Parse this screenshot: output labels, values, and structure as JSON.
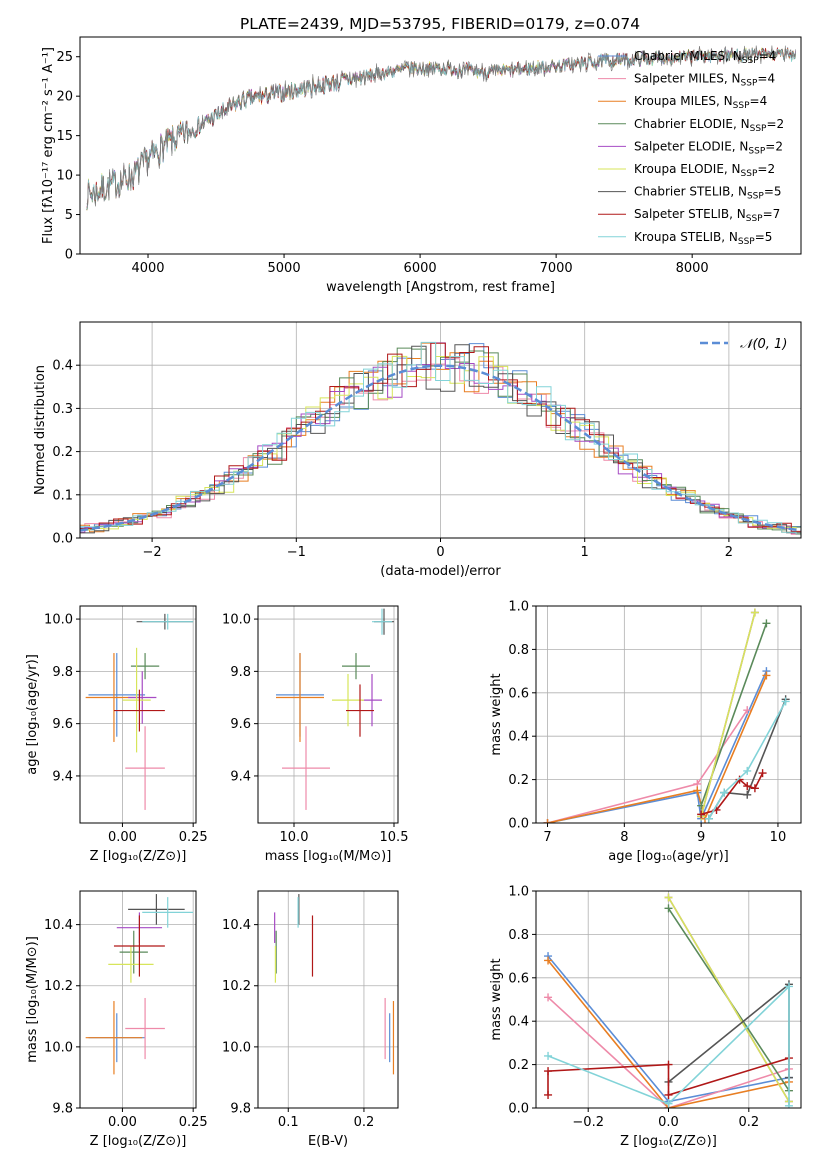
{
  "figure_title": "PLATE=2439, MJD=53795, FIBERID=0179, z=0.074",
  "colors": {
    "series": [
      "#5b8dd6",
      "#ee8aa9",
      "#e87e22",
      "#5a8a5a",
      "#a64bc4",
      "#d7e55a",
      "#555555",
      "#b01818",
      "#82d3d8"
    ],
    "normal_fit": "#5b8dd6",
    "grid": "#b0b0b0"
  },
  "chart_data": [
    {
      "type": "line",
      "id": "spectrum",
      "title": "PLATE=2439, MJD=53795, FIBERID=0179, z=0.074",
      "xlabel": "wavelength [Angstrom, rest frame]",
      "ylabel": "Flux [fλ10⁻¹⁷ erg cm⁻² s⁻¹ A⁻¹]",
      "xlim": [
        3500,
        8800
      ],
      "ylim": [
        0,
        27.5
      ],
      "xticks": [
        4000,
        5000,
        6000,
        7000,
        8000
      ],
      "yticks": [
        0,
        5,
        10,
        15,
        20,
        25
      ],
      "grid": false,
      "legend_position": "upper-right",
      "continuum_x": [
        3550,
        3700,
        3900,
        4000,
        4100,
        4300,
        4500,
        4700,
        5000,
        5300,
        5600,
        5900,
        6200,
        6500,
        6800,
        7100,
        7400,
        7700,
        8000,
        8300,
        8760
      ],
      "continuum_y": [
        7.5,
        8.5,
        10.0,
        12.0,
        13.5,
        15.5,
        17.5,
        19.5,
        20.5,
        21.5,
        22.5,
        23.5,
        23.5,
        23.0,
        23.5,
        24.0,
        24.5,
        24.8,
        25.0,
        25.2,
        25.3
      ],
      "series": [
        {
          "name": "Chabrier MILES, N",
          "sub": "SSP",
          "suffix": "=4"
        },
        {
          "name": "Salpeter MILES, N",
          "sub": "SSP",
          "suffix": "=4"
        },
        {
          "name": "Kroupa MILES, N",
          "sub": "SSP",
          "suffix": "=4"
        },
        {
          "name": "Chabrier ELODIE, N",
          "sub": "SSP",
          "suffix": "=2"
        },
        {
          "name": "Salpeter ELODIE, N",
          "sub": "SSP",
          "suffix": "=2"
        },
        {
          "name": "Kroupa ELODIE, N",
          "sub": "SSP",
          "suffix": "=2"
        },
        {
          "name": "Chabrier STELIB, N",
          "sub": "SSP",
          "suffix": "=5"
        },
        {
          "name": "Salpeter STELIB, N",
          "sub": "SSP",
          "suffix": "=7"
        },
        {
          "name": "Kroupa STELIB, N",
          "sub": "SSP",
          "suffix": "=5"
        }
      ]
    },
    {
      "type": "step",
      "id": "residuals",
      "xlabel": "(data-model)/error",
      "ylabel": "Normed distribution",
      "xlim": [
        -2.5,
        2.5
      ],
      "ylim": [
        0,
        0.5
      ],
      "xticks": [
        -2,
        -1,
        0,
        1,
        2
      ],
      "yticks": [
        0.0,
        0.1,
        0.2,
        0.3,
        0.4
      ],
      "grid": true,
      "legend": "𝒩(0, 1)",
      "normal_mean": 0,
      "normal_sigma": 1
    },
    {
      "type": "errorbar",
      "id": "age_vs_Z",
      "xlabel": "Z [log₁₀(Z/Z⊙)]",
      "ylabel": "age  [log₁₀(age/yr)]",
      "xlim": [
        -0.15,
        0.26
      ],
      "ylim": [
        9.22,
        10.05
      ],
      "xticks": [
        0.0,
        0.25
      ],
      "yticks": [
        9.4,
        9.6,
        9.8,
        10.0
      ],
      "grid": true,
      "points": [
        {
          "x": -0.02,
          "xerr": 0.1,
          "y": 9.71,
          "yerr": 0.16
        },
        {
          "x": 0.08,
          "xerr": 0.07,
          "y": 9.43,
          "yerr": 0.16
        },
        {
          "x": -0.03,
          "xerr": 0.1,
          "y": 9.7,
          "yerr": 0.17
        },
        {
          "x": 0.08,
          "xerr": 0.05,
          "y": 9.82,
          "yerr": 0.05
        },
        {
          "x": 0.07,
          "xerr": 0.05,
          "y": 9.7,
          "yerr": 0.1
        },
        {
          "x": 0.05,
          "xerr": 0.05,
          "y": 9.69,
          "yerr": 0.2
        },
        {
          "x": 0.15,
          "xerr": 0.1,
          "y": 9.99,
          "yerr": 0.03
        },
        {
          "x": 0.06,
          "xerr": 0.09,
          "y": 9.65,
          "yerr": 0.08
        },
        {
          "x": 0.16,
          "xerr": 0.09,
          "y": 9.99,
          "yerr": 0.03
        }
      ]
    },
    {
      "type": "errorbar",
      "id": "age_vs_mass",
      "xlabel": "mass [log₁₀(M/M⊙)]",
      "ylabel": "",
      "xlim": [
        9.82,
        10.52
      ],
      "ylim": [
        9.22,
        10.05
      ],
      "xticks": [
        10.0,
        10.5
      ],
      "yticks": [
        9.4,
        9.6,
        9.8,
        10.0
      ],
      "grid": true,
      "points": [
        {
          "x": 10.03,
          "xerr": 0.12,
          "y": 9.71,
          "yerr": 0.16
        },
        {
          "x": 10.06,
          "xerr": 0.12,
          "y": 9.43,
          "yerr": 0.16
        },
        {
          "x": 10.03,
          "xerr": 0.12,
          "y": 9.7,
          "yerr": 0.17
        },
        {
          "x": 10.31,
          "xerr": 0.07,
          "y": 9.82,
          "yerr": 0.05
        },
        {
          "x": 10.39,
          "xerr": 0.05,
          "y": 9.69,
          "yerr": 0.1
        },
        {
          "x": 10.27,
          "xerr": 0.08,
          "y": 9.69,
          "yerr": 0.1
        },
        {
          "x": 10.45,
          "xerr": 0.05,
          "y": 9.99,
          "yerr": 0.05
        },
        {
          "x": 10.33,
          "xerr": 0.07,
          "y": 9.65,
          "yerr": 0.1
        },
        {
          "x": 10.44,
          "xerr": 0.05,
          "y": 9.99,
          "yerr": 0.05
        }
      ]
    },
    {
      "type": "line",
      "id": "weight_vs_age",
      "xlabel": "age  [log₁₀(age/yr)]",
      "ylabel": "mass weight",
      "xlim": [
        6.85,
        10.3
      ],
      "ylim": [
        0,
        1
      ],
      "xticks": [
        7,
        8,
        9,
        10
      ],
      "yticks": [
        0.0,
        0.2,
        0.4,
        0.6,
        0.8,
        1.0
      ],
      "grid": true,
      "series": [
        {
          "x": [
            7.0,
            8.95,
            9.0,
            9.85
          ],
          "y": [
            0.0,
            0.14,
            0.02,
            0.7
          ]
        },
        {
          "x": [
            7.0,
            8.95,
            9.6
          ],
          "y": [
            0.0,
            0.18,
            0.52
          ]
        },
        {
          "x": [
            7.0,
            8.95,
            9.05,
            9.85
          ],
          "y": [
            0.0,
            0.15,
            0.02,
            0.68
          ]
        },
        {
          "x": [
            9.0,
            9.85
          ],
          "y": [
            0.08,
            0.92
          ]
        },
        {
          "x": [
            9.0,
            9.7
          ],
          "y": [
            0.03,
            0.97
          ]
        },
        {
          "x": [
            9.0,
            9.7
          ],
          "y": [
            0.03,
            0.97
          ]
        },
        {
          "x": [
            9.1,
            9.3,
            9.6,
            10.1
          ],
          "y": [
            0.02,
            0.14,
            0.13,
            0.57
          ]
        },
        {
          "x": [
            9.0,
            9.2,
            9.5,
            9.6,
            9.7,
            9.8
          ],
          "y": [
            0.04,
            0.06,
            0.2,
            0.17,
            0.16,
            0.23
          ]
        },
        {
          "x": [
            9.1,
            9.3,
            9.6,
            10.1
          ],
          "y": [
            0.02,
            0.14,
            0.24,
            0.56
          ]
        }
      ]
    },
    {
      "type": "errorbar",
      "id": "mass_vs_Z",
      "xlabel": "Z [log₁₀(Z/Z⊙)]",
      "ylabel": "mass [log₁₀(M/M⊙)]",
      "xlim": [
        -0.15,
        0.26
      ],
      "ylim": [
        9.8,
        10.51
      ],
      "xticks": [
        0.0,
        0.25
      ],
      "yticks": [
        9.8,
        10.0,
        10.2,
        10.4
      ],
      "grid": true,
      "points": [
        {
          "x": -0.02,
          "xerr": 0.1,
          "y": 10.03,
          "yerr": 0.08
        },
        {
          "x": 0.08,
          "xerr": 0.07,
          "y": 10.06,
          "yerr": 0.1
        },
        {
          "x": -0.03,
          "xerr": 0.1,
          "y": 10.03,
          "yerr": 0.12
        },
        {
          "x": 0.04,
          "xerr": 0.05,
          "y": 10.31,
          "yerr": 0.07
        },
        {
          "x": 0.06,
          "xerr": 0.08,
          "y": 10.39,
          "yerr": 0.05
        },
        {
          "x": 0.03,
          "xerr": 0.08,
          "y": 10.27,
          "yerr": 0.06
        },
        {
          "x": 0.12,
          "xerr": 0.1,
          "y": 10.45,
          "yerr": 0.05
        },
        {
          "x": 0.06,
          "xerr": 0.09,
          "y": 10.33,
          "yerr": 0.1
        },
        {
          "x": 0.16,
          "xerr": 0.09,
          "y": 10.44,
          "yerr": 0.05
        }
      ]
    },
    {
      "type": "errorbar",
      "id": "mass_vs_ebv",
      "xlabel": "E(B-V)",
      "ylabel": "",
      "xlim": [
        0.06,
        0.245
      ],
      "ylim": [
        9.8,
        10.51
      ],
      "xticks": [
        0.1,
        0.2
      ],
      "yticks": [
        9.8,
        10.0,
        10.2,
        10.4
      ],
      "grid": true,
      "points": [
        {
          "x": 0.234,
          "xerr": 0,
          "y": 10.03,
          "yerr": 0.08
        },
        {
          "x": 0.228,
          "xerr": 0,
          "y": 10.06,
          "yerr": 0.1
        },
        {
          "x": 0.239,
          "xerr": 0,
          "y": 10.03,
          "yerr": 0.12
        },
        {
          "x": 0.084,
          "xerr": 0,
          "y": 10.31,
          "yerr": 0.07
        },
        {
          "x": 0.082,
          "xerr": 0,
          "y": 10.39,
          "yerr": 0.05
        },
        {
          "x": 0.083,
          "xerr": 0,
          "y": 10.27,
          "yerr": 0.06
        },
        {
          "x": 0.114,
          "xerr": 0,
          "y": 10.45,
          "yerr": 0.05
        },
        {
          "x": 0.132,
          "xerr": 0,
          "y": 10.33,
          "yerr": 0.1
        },
        {
          "x": 0.113,
          "xerr": 0,
          "y": 10.44,
          "yerr": 0.05
        }
      ]
    },
    {
      "type": "line",
      "id": "weight_vs_Z",
      "xlabel": "Z [log₁₀(Z/Z⊙)]",
      "ylabel": "mass weight",
      "xlim": [
        -0.33,
        0.33
      ],
      "ylim": [
        0,
        1
      ],
      "xticks": [
        -0.2,
        0.0,
        0.2
      ],
      "yticks": [
        0.0,
        0.2,
        0.4,
        0.6,
        0.8,
        1.0
      ],
      "grid": true,
      "series": [
        {
          "x": [
            -0.3,
            0.0,
            0.3
          ],
          "y": [
            0.7,
            0.03,
            0.14
          ]
        },
        {
          "x": [
            -0.3,
            0.0,
            0.3
          ],
          "y": [
            0.51,
            0.0,
            0.18
          ]
        },
        {
          "x": [
            -0.3,
            0.0,
            0.3
          ],
          "y": [
            0.68,
            0.0,
            0.12
          ]
        },
        {
          "x": [
            0.0,
            0.3
          ],
          "y": [
            0.92,
            0.08
          ]
        },
        {
          "x": [
            0.0,
            0.3
          ],
          "y": [
            0.97,
            0.03
          ]
        },
        {
          "x": [
            0.0,
            0.3
          ],
          "y": [
            0.97,
            0.03
          ]
        },
        {
          "x": [
            0.0,
            0.3,
            0.3
          ],
          "y": [
            0.12,
            0.57,
            0.14
          ]
        },
        {
          "x": [
            -0.3,
            -0.3,
            0.0,
            0.0,
            0.3
          ],
          "y": [
            0.06,
            0.17,
            0.2,
            0.06,
            0.23
          ]
        },
        {
          "x": [
            -0.3,
            0.0,
            0.3,
            0.3
          ],
          "y": [
            0.24,
            0.02,
            0.56,
            0.01
          ]
        }
      ]
    }
  ]
}
